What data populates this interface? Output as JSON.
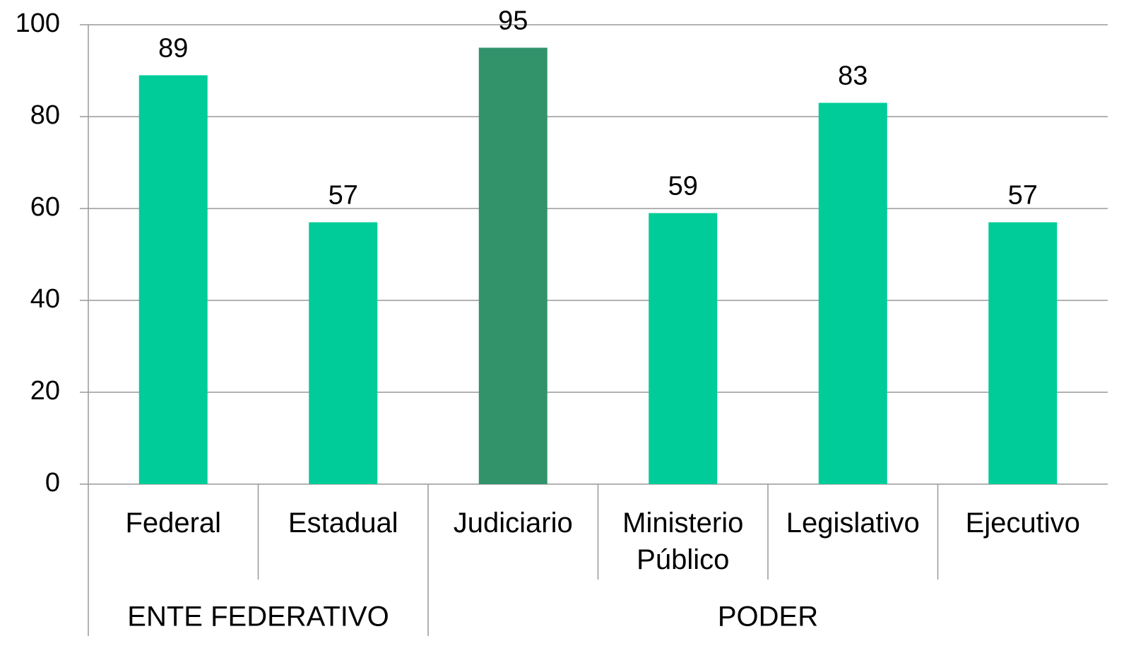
{
  "chart_data": {
    "type": "bar",
    "categories": [
      "Federal",
      "Estadual",
      "Judiciario",
      "Ministerio Público",
      "Legislativo",
      "Ejecutivo"
    ],
    "values": [
      89,
      57,
      95,
      59,
      83,
      57
    ],
    "colors": [
      "#00cc99",
      "#00cc99",
      "#32936b",
      "#00cc99",
      "#00cc99",
      "#00cc99"
    ],
    "groups": [
      {
        "label": "ENTE FEDERATIVO",
        "span": 2
      },
      {
        "label": "PODER",
        "span": 4
      }
    ],
    "ylim": [
      0,
      100
    ],
    "yticks": [
      0,
      20,
      40,
      60,
      80,
      100
    ],
    "grid": true
  }
}
